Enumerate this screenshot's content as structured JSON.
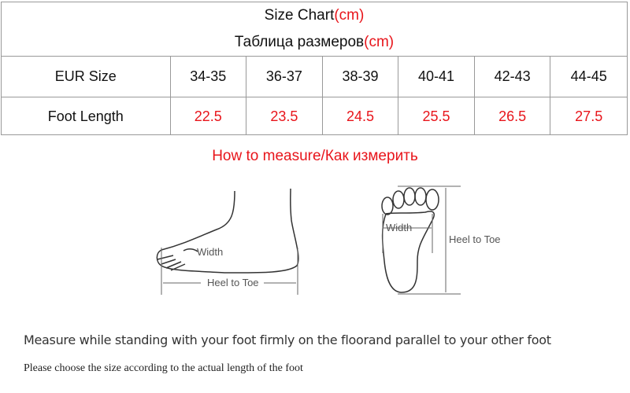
{
  "size_chart": {
    "title": "Size Chart",
    "title_unit": "(cm)",
    "subtitle": "Таблица размеров",
    "subtitle_unit": "(cm)",
    "rows": [
      {
        "label": "EUR Size",
        "values": [
          "34-35",
          "36-37",
          "38-39",
          "40-41",
          "42-43",
          "44-45"
        ]
      },
      {
        "label": "Foot Length",
        "values": [
          "22.5",
          "23.5",
          "24.5",
          "25.5",
          "26.5",
          "27.5"
        ]
      }
    ]
  },
  "how_to": "How to measure/Как измерить",
  "diagrams": {
    "side": {
      "width_label": "Width",
      "length_label": "Heel to Toe"
    },
    "sole": {
      "width_label": "Width",
      "length_label": "Heel to Toe"
    }
  },
  "notes": [
    "Measure while standing with your foot firmly on the floorand parallel to your other foot",
    "Please choose the size according to the actual length of the foot"
  ],
  "colors": {
    "accent": "#e8151b",
    "border": "#999999"
  }
}
